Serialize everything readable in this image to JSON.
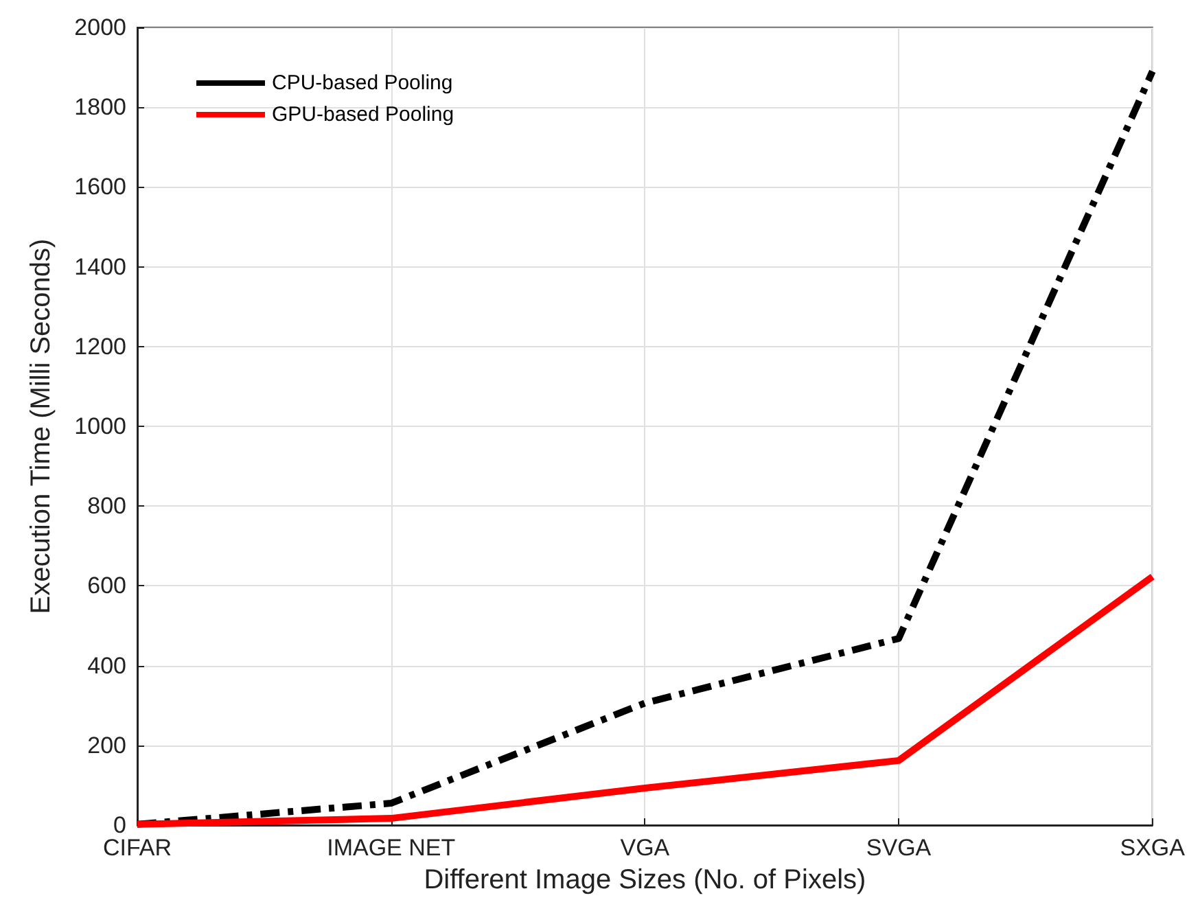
{
  "chart_data": {
    "type": "line",
    "xlabel": "Different Image Sizes (No. of Pixels)",
    "ylabel": "Execution Time (Milli Seconds)",
    "categories": [
      "CIFAR",
      "IMAGE NET",
      "VGA",
      "SVGA",
      "SXGA"
    ],
    "series": [
      {
        "name": "CPU-based Pooling",
        "color": "#000000",
        "line_style": "dashed",
        "values": [
          2,
          55,
          306,
          468,
          1890
        ]
      },
      {
        "name": "GPU-based Pooling",
        "color": "#ff0000",
        "line_style": "solid",
        "values": [
          2,
          17,
          93,
          162,
          623
        ]
      }
    ],
    "ylim": [
      0,
      2000
    ],
    "yticks": [
      0,
      200,
      400,
      600,
      800,
      1000,
      1200,
      1400,
      1600,
      1800,
      2000
    ],
    "grid": true,
    "legend": "top left",
    "marker": "none"
  }
}
